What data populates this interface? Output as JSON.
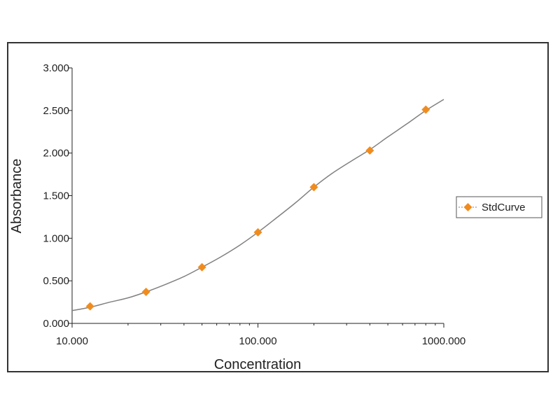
{
  "chart_data": {
    "type": "scatter",
    "title": "",
    "xlabel": "Concentration",
    "ylabel": "Absorbance",
    "xscale": "log",
    "xlim": [
      10,
      1000
    ],
    "ylim": [
      0,
      3
    ],
    "x_ticks": [
      {
        "value": 10,
        "label": "10.000"
      },
      {
        "value": 100,
        "label": "100.000"
      },
      {
        "value": 1000,
        "label": "1000.000"
      }
    ],
    "y_ticks": [
      {
        "value": 0,
        "label": "0.000"
      },
      {
        "value": 0.5,
        "label": "0.500"
      },
      {
        "value": 1.0,
        "label": "1.000"
      },
      {
        "value": 1.5,
        "label": "1.500"
      },
      {
        "value": 2.0,
        "label": "2.000"
      },
      {
        "value": 2.5,
        "label": "2.500"
      },
      {
        "value": 3.0,
        "label": "3.000"
      }
    ],
    "grid": false,
    "legend_position": "right",
    "series": [
      {
        "name": "StdCurve",
        "marker": "diamond",
        "color": "#f08c1e",
        "x": [
          12.5,
          25,
          50,
          100,
          200,
          400,
          800
        ],
        "y": [
          0.2,
          0.37,
          0.66,
          1.07,
          1.6,
          2.03,
          2.51
        ]
      }
    ],
    "fit_curve": {
      "color": "#808080",
      "x": [
        10,
        12.5,
        16,
        20,
        25,
        32,
        40,
        50,
        63,
        80,
        100,
        126,
        160,
        200,
        250,
        320,
        400,
        500,
        630,
        800,
        1000
      ],
      "y": [
        0.15,
        0.19,
        0.25,
        0.3,
        0.37,
        0.46,
        0.55,
        0.66,
        0.78,
        0.92,
        1.07,
        1.24,
        1.42,
        1.6,
        1.76,
        1.91,
        2.04,
        2.19,
        2.34,
        2.5,
        2.63
      ]
    }
  }
}
